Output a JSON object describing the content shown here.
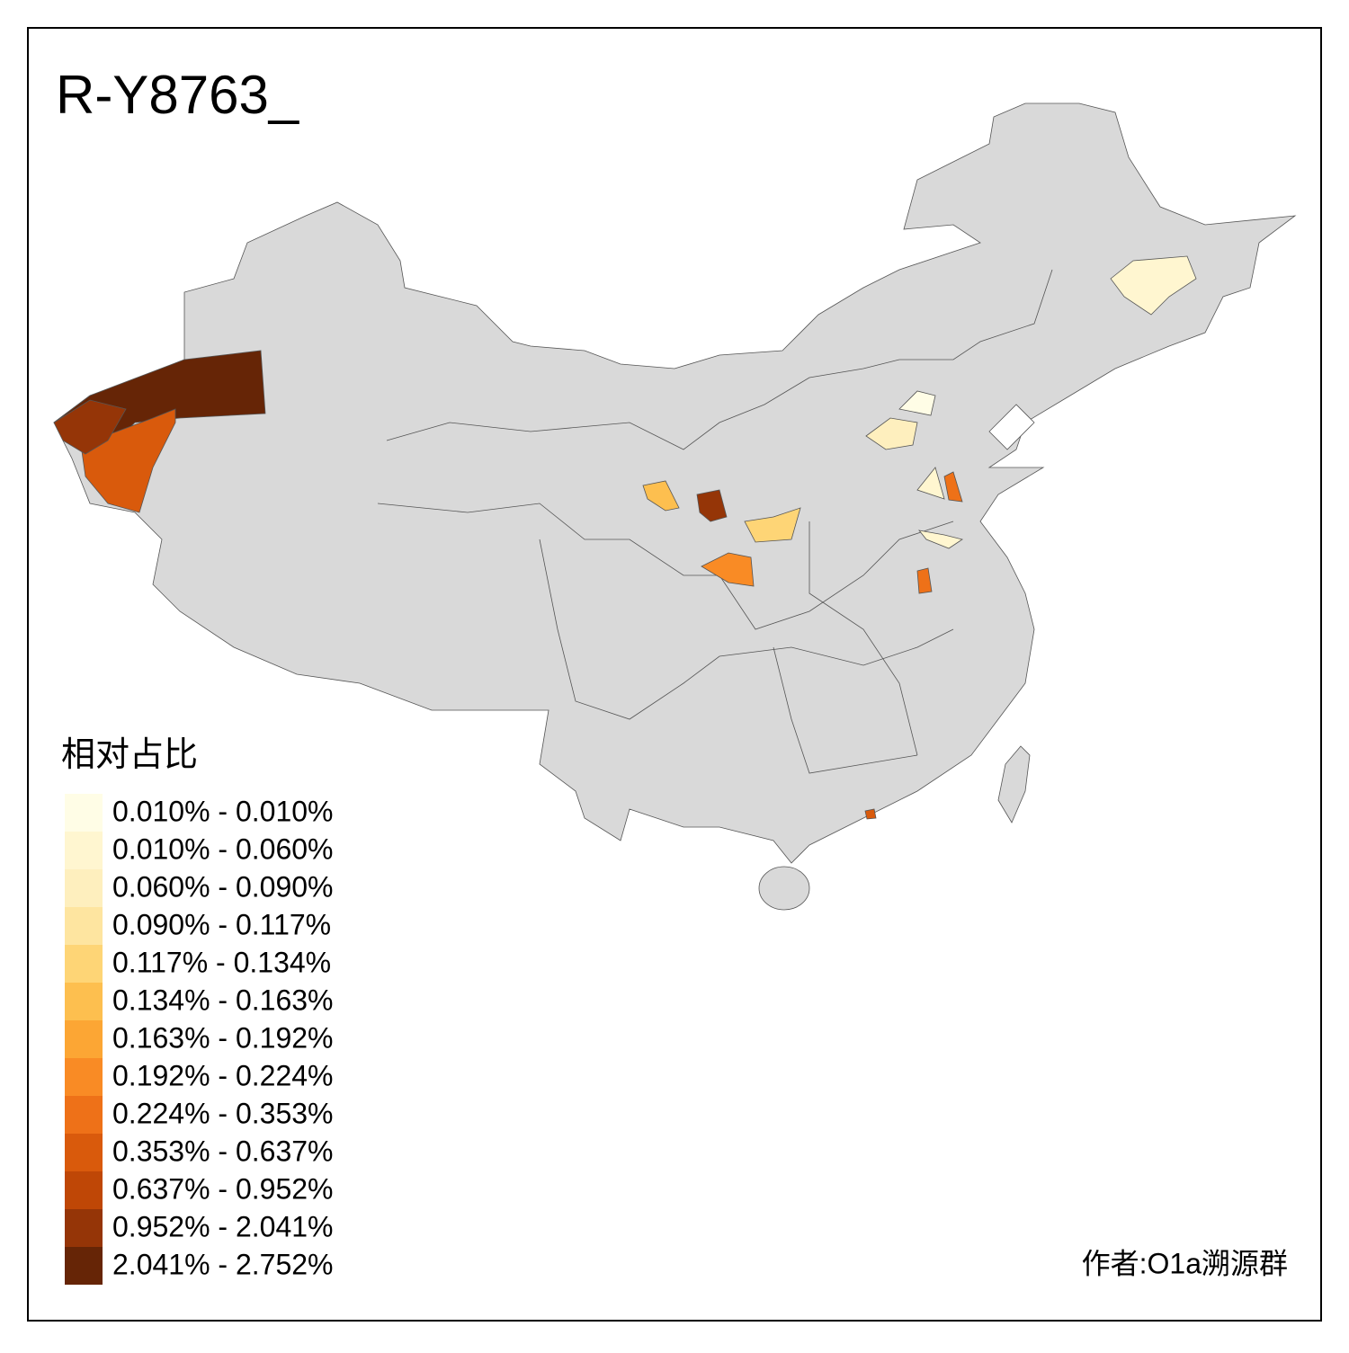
{
  "title": "R-Y8763_",
  "legend": {
    "title": "相对占比",
    "items": [
      {
        "label": "0.010% - 0.010%",
        "color": "#fffde6"
      },
      {
        "label": "0.010% - 0.060%",
        "color": "#fff6d0"
      },
      {
        "label": "0.060% - 0.090%",
        "color": "#feefbe"
      },
      {
        "label": "0.090% - 0.117%",
        "color": "#fee5a0"
      },
      {
        "label": "0.117% - 0.134%",
        "color": "#fed576"
      },
      {
        "label": "0.134% - 0.163%",
        "color": "#fdbf4f"
      },
      {
        "label": "0.163% - 0.192%",
        "color": "#fca634"
      },
      {
        "label": "0.192% - 0.224%",
        "color": "#f98b25"
      },
      {
        "label": "0.224% - 0.353%",
        "color": "#ee7118"
      },
      {
        "label": "0.353% - 0.637%",
        "color": "#d95a0c"
      },
      {
        "label": "0.637% - 0.952%",
        "color": "#bf4706"
      },
      {
        "label": "0.952% - 2.041%",
        "color": "#953507"
      },
      {
        "label": "2.041% - 2.752%",
        "color": "#662506"
      }
    ]
  },
  "credit": "作者:O1a溯源群"
}
